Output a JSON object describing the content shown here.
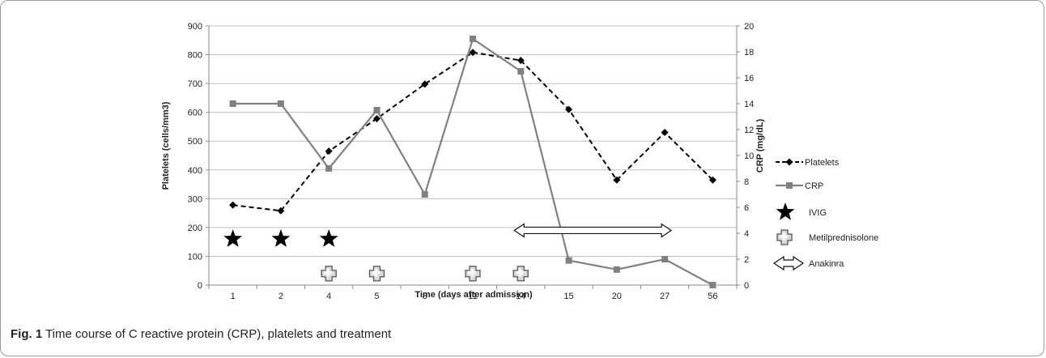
{
  "caption": {
    "label": "Fig. 1",
    "text": "Time course of C reactive protein (CRP), platelets and treatment"
  },
  "chart_data": {
    "type": "line",
    "title": "",
    "xlabel": "Time (days after admission)",
    "ylabel": "Platelets (cells/mm3)",
    "y2label": "CRP (mg/dL)",
    "categories": [
      "1",
      "2",
      "4",
      "5",
      "8",
      "11",
      "14",
      "15",
      "20",
      "27",
      "56"
    ],
    "ylim": [
      0,
      900
    ],
    "yticks": [
      "0",
      "100",
      "200",
      "300",
      "400",
      "500",
      "600",
      "700",
      "800",
      "900"
    ],
    "y2lim": [
      0,
      20
    ],
    "y2ticks": [
      "0",
      "2",
      "4",
      "6",
      "8",
      "10",
      "12",
      "14",
      "16",
      "18",
      "20"
    ],
    "grid": true,
    "legend_position": "right",
    "series": [
      {
        "name": "Platelets",
        "axis": "left",
        "color": "#000000",
        "line": "dashed",
        "marker": "diamond",
        "values": [
          278,
          258,
          465,
          578,
          698,
          808,
          780,
          610,
          365,
          530,
          365
        ]
      },
      {
        "name": "CRP",
        "axis": "right",
        "color": "#808080",
        "line": "solid",
        "marker": "square",
        "values": [
          14.0,
          14.0,
          9.0,
          13.5,
          7.0,
          19.0,
          16.5,
          1.9,
          1.2,
          2.0,
          0.0
        ]
      }
    ],
    "treatments": [
      {
        "name": "IVIG",
        "symbol": "star",
        "days": [
          "1",
          "2",
          "4"
        ],
        "y": 160
      },
      {
        "name": "Metilprednisolone",
        "symbol": "cross",
        "days": [
          "4",
          "5",
          "11",
          "14"
        ],
        "y": 40
      },
      {
        "name": "Anakinra",
        "symbol": "double-arrow",
        "from": "14",
        "to": "27",
        "y": 190
      }
    ]
  }
}
